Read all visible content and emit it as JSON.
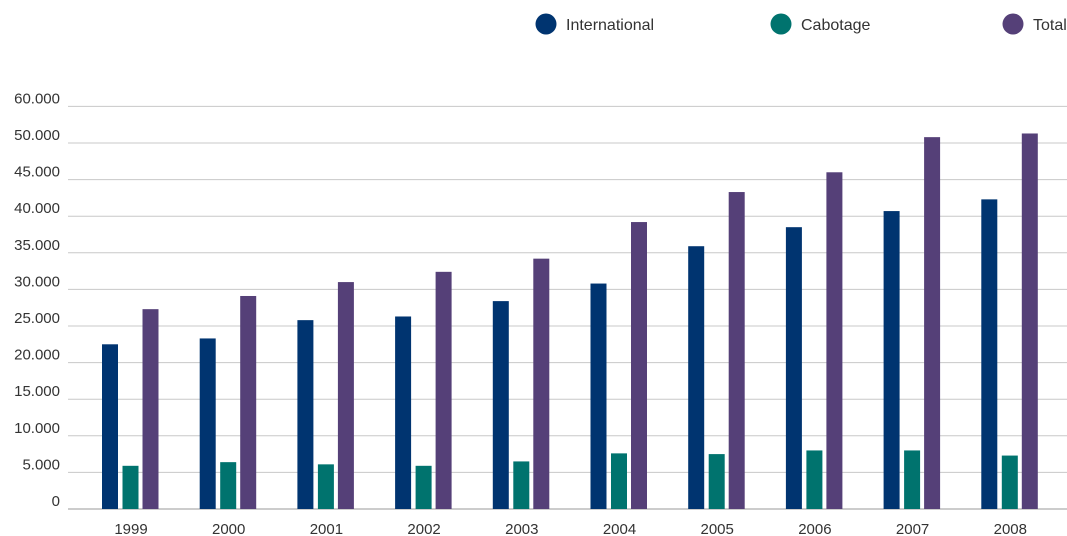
{
  "chart_data": {
    "type": "bar",
    "categories": [
      "1999",
      "2000",
      "2001",
      "2002",
      "2003",
      "2004",
      "2005",
      "2006",
      "2007",
      "2008"
    ],
    "series": [
      {
        "name": "International",
        "color": "#003470",
        "values": [
          22500,
          23300,
          25800,
          26300,
          28400,
          30800,
          35900,
          38500,
          40700,
          42300
        ]
      },
      {
        "name": "Cabotage",
        "color": "#00736E",
        "values": [
          5900,
          6400,
          6100,
          5900,
          6500,
          7600,
          7500,
          8000,
          8000,
          7300
        ]
      },
      {
        "name": "Total",
        "color": "#554078",
        "values": [
          27300,
          29100,
          31000,
          32400,
          34200,
          39200,
          43300,
          46000,
          50800,
          51300
        ]
      }
    ],
    "yticks": [
      "0",
      "5.000",
      "10.000",
      "15.000",
      "20.000",
      "25.000",
      "30.000",
      "35.000",
      "40.000",
      "45.000",
      "50.000",
      "60.000"
    ],
    "ylim": [
      0,
      55000
    ],
    "grid": true,
    "legend": "top-right"
  }
}
